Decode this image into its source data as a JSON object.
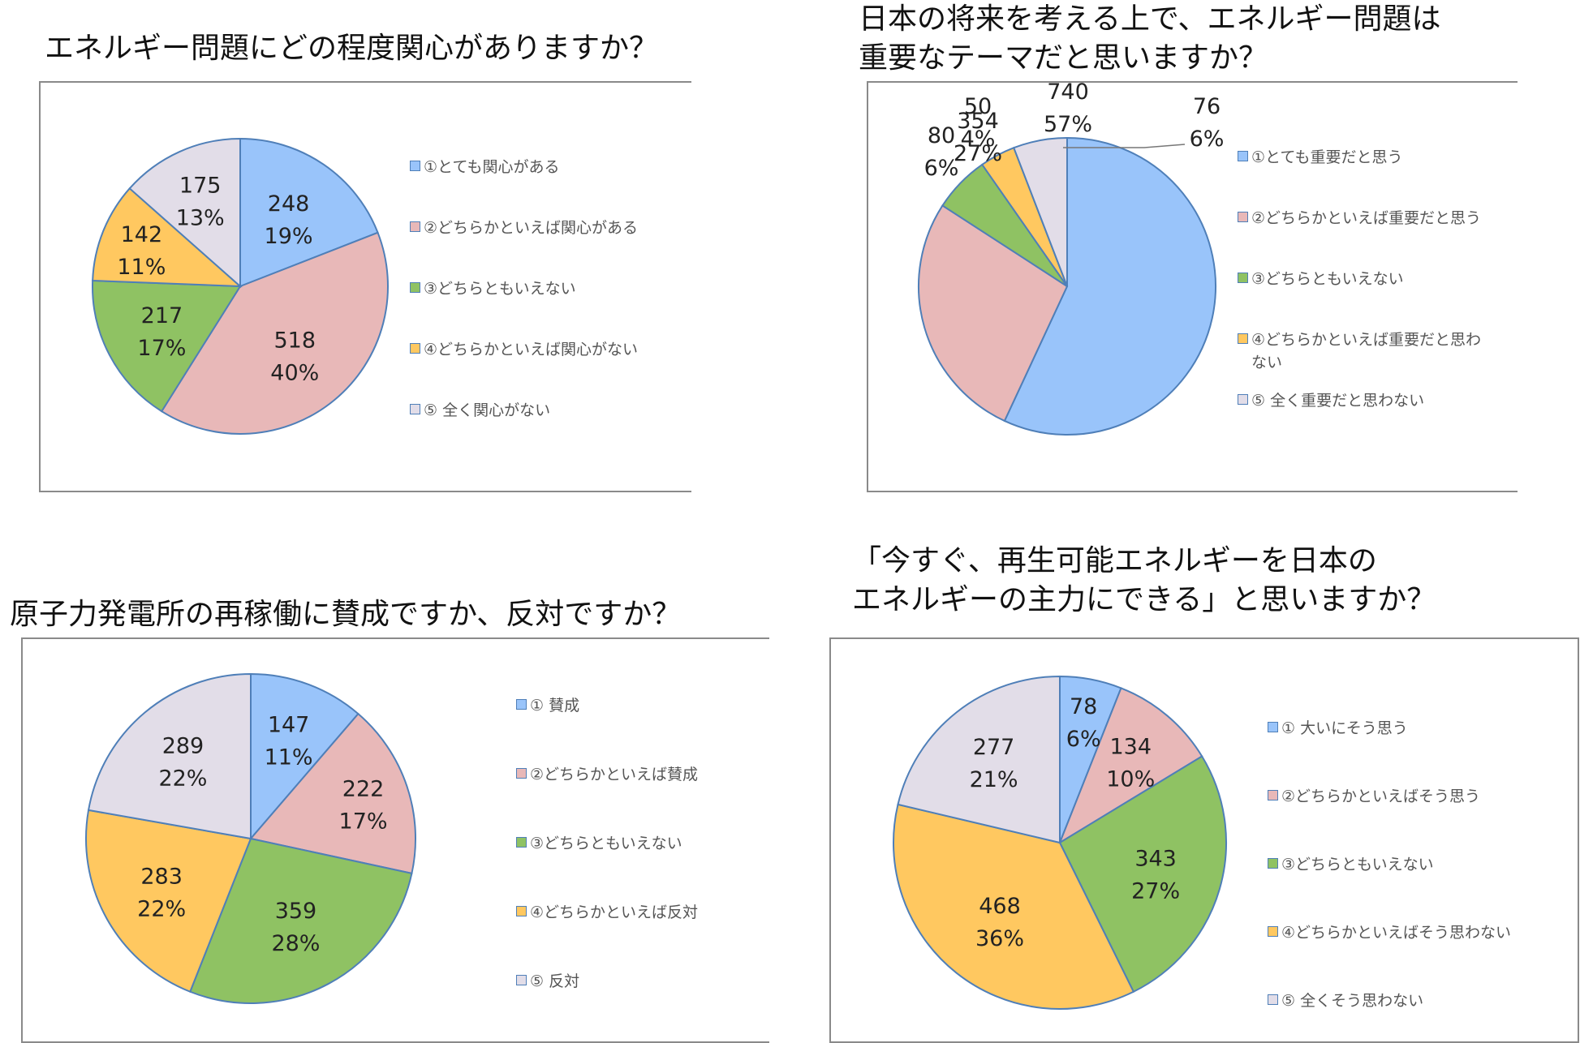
{
  "chart_data": [
    {
      "type": "pie",
      "title": "エネルギー問題にどの程度関心がありますか？",
      "categories": [
        "①とても関心がある",
        "②どちらかといえば関心がある",
        "③どちらともいえない",
        "④どちらかといえば関心がない",
        "⑤ 全く関心がない"
      ],
      "values": [
        248,
        518,
        217,
        142,
        175
      ],
      "percent_labels": [
        "19%",
        "40%",
        "17%",
        "11%",
        "13%"
      ],
      "value_labels": [
        "248",
        "518",
        "217",
        "142",
        "175"
      ],
      "colors": [
        "#99c4fa",
        "#e8b8b8",
        "#8fc263",
        "#ffc860",
        "#e2dde8"
      ],
      "legend": "right"
    },
    {
      "type": "pie",
      "title": "日本の将来を考える上で、エネルギー問題は\n重要なテーマだと思いますか？",
      "categories": [
        "①とても重要だと思う",
        "②どちらかといえば重要だと思う",
        "③どちらともいえない",
        "④どちらかといえば重要だと思わない",
        "⑤ 全く重要だと思わない"
      ],
      "values": [
        740,
        354,
        80,
        50,
        76
      ],
      "percent_labels": [
        "57%",
        "27%",
        "6%",
        "4%",
        "6%"
      ],
      "value_labels": [
        "740",
        "354",
        "80",
        "50",
        "76"
      ],
      "colors": [
        "#99c4fa",
        "#e8b8b8",
        "#8fc263",
        "#ffc860",
        "#e2dde8"
      ],
      "legend": "right"
    },
    {
      "type": "pie",
      "title": "原子力発電所の再稼働に賛成ですか、反対ですか？",
      "categories": [
        "① 賛成",
        "②どちらかといえば賛成",
        "③どちらともいえない",
        "④どちらかといえば反対",
        "⑤ 反対"
      ],
      "values": [
        147,
        222,
        359,
        283,
        289
      ],
      "percent_labels": [
        "11%",
        "17%",
        "28%",
        "22%",
        "22%"
      ],
      "value_labels": [
        "147",
        "222",
        "359",
        "283",
        "289"
      ],
      "colors": [
        "#99c4fa",
        "#e8b8b8",
        "#8fc263",
        "#ffc860",
        "#e2dde8"
      ],
      "legend": "right"
    },
    {
      "type": "pie",
      "title": "「今すぐ、再生可能エネルギーを日本の\nエネルギーの主力にできる」と思いますか？",
      "categories": [
        "① 大いにそう思う",
        "②どちらかといえばそう思う",
        "③どちらともいえない",
        "④どちらかといえばそう思わない",
        "⑤ 全くそう思わない"
      ],
      "values": [
        78,
        134,
        343,
        468,
        277
      ],
      "percent_labels": [
        "6%",
        "10%",
        "27%",
        "36%",
        "21%"
      ],
      "value_labels": [
        "78",
        "134",
        "343",
        "468",
        "277"
      ],
      "colors": [
        "#99c4fa",
        "#e8b8b8",
        "#8fc263",
        "#ffc860",
        "#e2dde8"
      ],
      "legend": "right"
    }
  ]
}
